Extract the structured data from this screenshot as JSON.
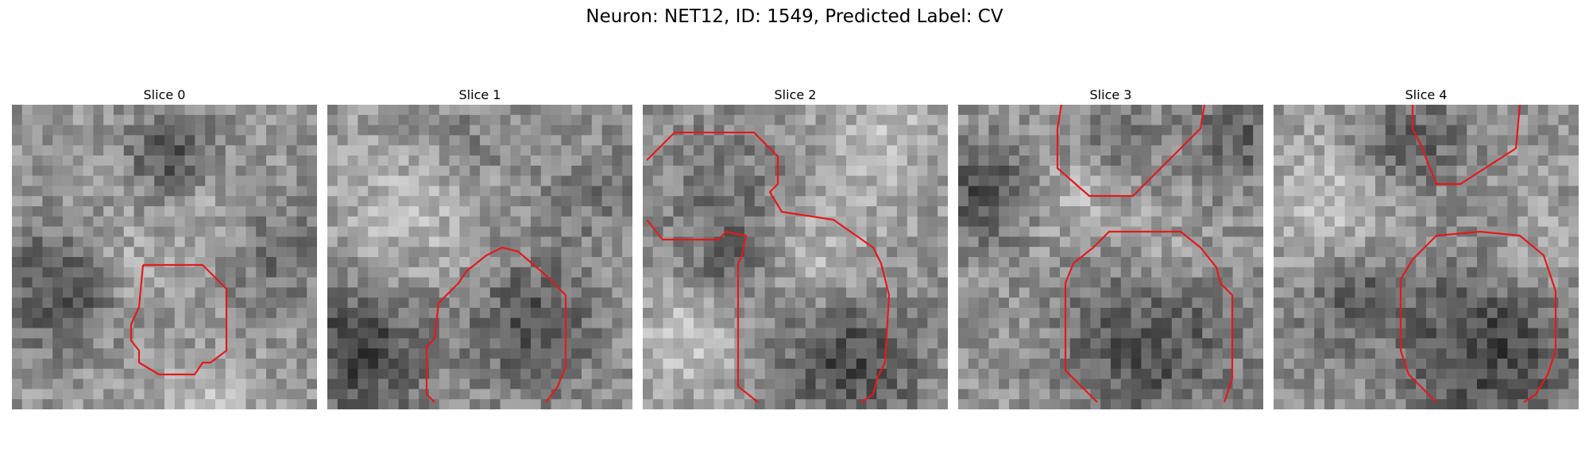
{
  "figure": {
    "title": "Neuron: NET12, ID: 1549, Predicted Label: CV",
    "contour_color": "#e31a1c",
    "colormap": "gray"
  },
  "slices": [
    {
      "title": "Slice 0"
    },
    {
      "title": "Slice 1"
    },
    {
      "title": "Slice 2"
    },
    {
      "title": "Slice 3"
    },
    {
      "title": "Slice 4"
    }
  ]
}
